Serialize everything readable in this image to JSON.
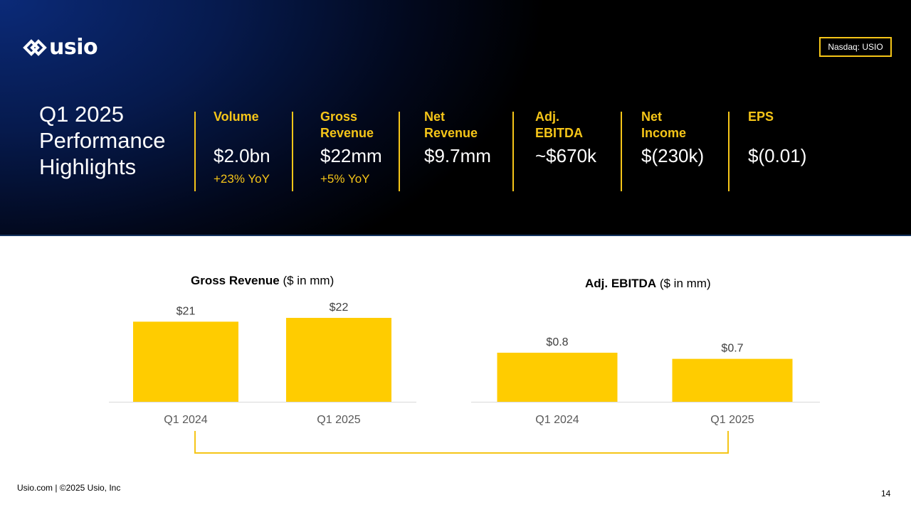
{
  "brand": {
    "logo_text": "usio",
    "ticker": "Nasdaq: USIO"
  },
  "headline": {
    "line1": "Q1 2025",
    "line2": "Performance",
    "line3": "Highlights"
  },
  "metrics": [
    {
      "label1": "Volume",
      "label2": "",
      "value": "$2.0bn",
      "change": "+23% YoY"
    },
    {
      "label1": "Gross",
      "label2": "Revenue",
      "value": "$22mm",
      "change": "+5% YoY"
    },
    {
      "label1": "Net",
      "label2": "Revenue",
      "value": "$9.7mm",
      "change": ""
    },
    {
      "label1": "Adj.",
      "label2": "EBITDA",
      "value": "~$670k",
      "change": ""
    },
    {
      "label1": "Net",
      "label2": "Income",
      "value": "$(230k)",
      "change": ""
    },
    {
      "label1": "EPS",
      "label2": "",
      "value": "$(0.01)",
      "change": ""
    }
  ],
  "chart_data": [
    {
      "type": "bar",
      "title": "Gross Revenue",
      "title_unit": "($ in mm)",
      "categories": [
        "Q1 2024",
        "Q1 2025"
      ],
      "values": [
        21,
        22
      ],
      "value_labels": [
        "$21",
        "$22"
      ],
      "ylim": [
        0,
        22
      ],
      "xlabel": "",
      "ylabel": "",
      "color": "#ffcc00",
      "grid": false
    },
    {
      "type": "bar",
      "title": "Adj. EBITDA",
      "title_unit": "($ in mm)",
      "categories": [
        "Q1 2024",
        "Q1 2025"
      ],
      "values": [
        0.8,
        0.7
      ],
      "value_labels": [
        "$0.8",
        "$0.7"
      ],
      "ylim": [
        0,
        1.6
      ],
      "xlabel": "",
      "ylabel": "",
      "color": "#ffcc00",
      "grid": false
    }
  ],
  "footer": {
    "text": "Usio.com   |  ©2025 Usio, Inc",
    "page": "14"
  },
  "colors": {
    "accent": "#f5c518",
    "bar": "#ffcc00",
    "navy": "#0b2a78"
  }
}
